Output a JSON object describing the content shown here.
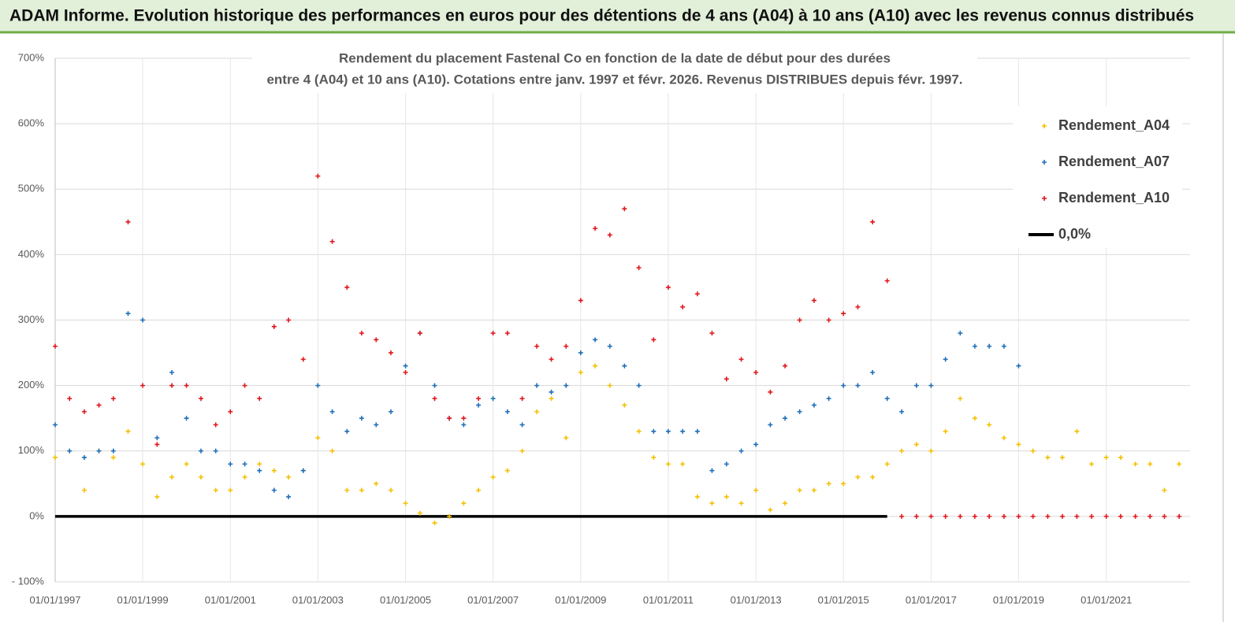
{
  "header": {
    "title": "ADAM Informe. Evolution historique des performances en euros pour des détentions de 4 ans (A04) à 10 ans (A10) avec les revenus connus distribués"
  },
  "chart_data": {
    "type": "scatter",
    "title": "Rendement du placement Fastenal Co en fonction de la date de début pour des durées",
    "subtitle": "entre 4 (A04) et 10 ans (A10).  Cotations entre janv. 1997 et févr. 2026. Revenus DISTRIBUES depuis févr. 1997.",
    "x": [
      "1997-01-01",
      "1997-05-01",
      "1997-09-01",
      "1998-01-01",
      "1998-05-01",
      "1998-09-01",
      "1999-01-01",
      "1999-05-01",
      "1999-09-01",
      "2000-01-01",
      "2000-05-01",
      "2000-09-01",
      "2001-01-01",
      "2001-05-01",
      "2001-09-01",
      "2002-01-01",
      "2002-05-01",
      "2002-09-01",
      "2003-01-01",
      "2003-05-01",
      "2003-09-01",
      "2004-01-01",
      "2004-05-01",
      "2004-09-01",
      "2005-01-01",
      "2005-05-01",
      "2005-09-01",
      "2006-01-01",
      "2006-05-01",
      "2006-09-01",
      "2007-01-01",
      "2007-05-01",
      "2007-09-01",
      "2008-01-01",
      "2008-05-01",
      "2008-09-01",
      "2009-01-01",
      "2009-05-01",
      "2009-09-01",
      "2010-01-01",
      "2010-05-01",
      "2010-09-01",
      "2011-01-01",
      "2011-05-01",
      "2011-09-01",
      "2012-01-01",
      "2012-05-01",
      "2012-09-01",
      "2013-01-01",
      "2013-05-01",
      "2013-09-01",
      "2014-01-01",
      "2014-05-01",
      "2014-09-01",
      "2015-01-01",
      "2015-05-01",
      "2015-09-01",
      "2016-01-01",
      "2016-05-01",
      "2016-09-01",
      "2017-01-01",
      "2017-05-01",
      "2017-09-01",
      "2018-01-01",
      "2018-05-01",
      "2018-09-01",
      "2019-01-01",
      "2019-05-01",
      "2019-09-01",
      "2020-01-01",
      "2020-05-01",
      "2020-09-01",
      "2021-01-01",
      "2021-05-01",
      "2021-09-01",
      "2022-01-01",
      "2022-05-01",
      "2022-09-01"
    ],
    "series": [
      {
        "name": "Rendement_A04",
        "color": "#f5c000",
        "marker": "plus",
        "values": [
          90,
          100,
          40,
          100,
          90,
          130,
          80,
          30,
          60,
          80,
          60,
          40,
          40,
          60,
          80,
          70,
          60,
          70,
          120,
          100,
          40,
          40,
          50,
          40,
          20,
          5,
          -10,
          0,
          20,
          40,
          60,
          70,
          100,
          160,
          180,
          120,
          220,
          230,
          200,
          170,
          130,
          90,
          80,
          80,
          30,
          20,
          30,
          20,
          40,
          10,
          20,
          40,
          40,
          50,
          50,
          60,
          60,
          80,
          100,
          110,
          100,
          130,
          180,
          150,
          140,
          120,
          110,
          100,
          90,
          90,
          130,
          80,
          90,
          90,
          80,
          80,
          40,
          80
        ]
      },
      {
        "name": "Rendement_A07",
        "color": "#1f6fb8",
        "marker": "plus",
        "values": [
          140,
          100,
          90,
          100,
          100,
          310,
          300,
          120,
          220,
          150,
          100,
          100,
          80,
          80,
          70,
          40,
          30,
          70,
          200,
          160,
          130,
          150,
          140,
          160,
          230,
          280,
          200,
          150,
          140,
          170,
          180,
          160,
          140,
          200,
          190,
          200,
          250,
          270,
          260,
          230,
          200,
          130,
          130,
          130,
          130,
          70,
          80,
          100,
          110,
          140,
          150,
          160,
          170,
          180,
          200,
          200,
          220,
          180,
          160,
          200,
          200,
          240,
          280,
          260,
          260,
          260,
          230,
          null,
          null,
          null,
          null,
          null,
          null,
          null,
          null,
          null,
          null,
          null
        ]
      },
      {
        "name": "Rendement_A10",
        "color": "#e3151a",
        "marker": "plus",
        "values": [
          260,
          180,
          160,
          170,
          180,
          450,
          200,
          110,
          200,
          200,
          180,
          140,
          160,
          200,
          180,
          290,
          300,
          240,
          520,
          420,
          350,
          280,
          270,
          250,
          220,
          280,
          180,
          150,
          150,
          180,
          280,
          280,
          180,
          260,
          240,
          260,
          330,
          440,
          430,
          470,
          380,
          270,
          350,
          320,
          340,
          280,
          210,
          240,
          220,
          190,
          230,
          300,
          330,
          300,
          310,
          320,
          450,
          360,
          0,
          0,
          0,
          0,
          0,
          0,
          0,
          0,
          0,
          0,
          0,
          0,
          0,
          0,
          0,
          0,
          0,
          0,
          0,
          0
        ]
      },
      {
        "name": "0,0%",
        "color": "#000000",
        "marker": "line",
        "values": [
          0,
          0,
          0,
          0,
          0,
          0,
          0,
          0,
          0,
          0,
          0,
          0,
          0,
          0,
          0,
          0,
          0,
          0,
          0,
          0,
          0,
          0,
          0,
          0,
          0,
          0,
          0,
          0,
          0,
          0,
          0,
          0,
          0,
          0,
          0,
          0,
          0,
          0,
          0,
          0,
          0,
          0,
          0,
          0,
          0,
          0,
          0,
          0,
          0,
          0,
          0,
          0,
          0,
          0,
          0,
          0,
          0,
          0,
          null,
          null,
          null,
          null,
          null,
          null,
          null,
          null,
          null,
          null,
          null,
          null,
          null,
          null,
          null,
          null,
          null,
          null,
          null,
          null
        ]
      }
    ],
    "xlim": [
      "1997-01-01",
      "2022-12-01"
    ],
    "xticks": [
      {
        "value": "1997-01-01",
        "label": "01/01/1997"
      },
      {
        "value": "1999-01-01",
        "label": "01/01/1999"
      },
      {
        "value": "2001-01-01",
        "label": "01/01/2001"
      },
      {
        "value": "2003-01-01",
        "label": "01/01/2003"
      },
      {
        "value": "2005-01-01",
        "label": "01/01/2005"
      },
      {
        "value": "2007-01-01",
        "label": "01/01/2007"
      },
      {
        "value": "2009-01-01",
        "label": "01/01/2009"
      },
      {
        "value": "2011-01-01",
        "label": "01/01/2011"
      },
      {
        "value": "2013-01-01",
        "label": "01/01/2013"
      },
      {
        "value": "2015-01-01",
        "label": "01/01/2015"
      },
      {
        "value": "2017-01-01",
        "label": "01/01/2017"
      },
      {
        "value": "2019-01-01",
        "label": "01/01/2019"
      },
      {
        "value": "2021-01-01",
        "label": "01/01/2021"
      }
    ],
    "ylim": [
      -100,
      700
    ],
    "yticks": [
      {
        "value": -100,
        "label": "- 100%"
      },
      {
        "value": 0,
        "label": "0%"
      },
      {
        "value": 100,
        "label": "100%"
      },
      {
        "value": 200,
        "label": "200%"
      },
      {
        "value": 300,
        "label": "300%"
      },
      {
        "value": 400,
        "label": "400%"
      },
      {
        "value": 500,
        "label": "500%"
      },
      {
        "value": 600,
        "label": "600%"
      },
      {
        "value": 700,
        "label": "700%"
      }
    ],
    "grid": true,
    "legend": "upper right"
  }
}
